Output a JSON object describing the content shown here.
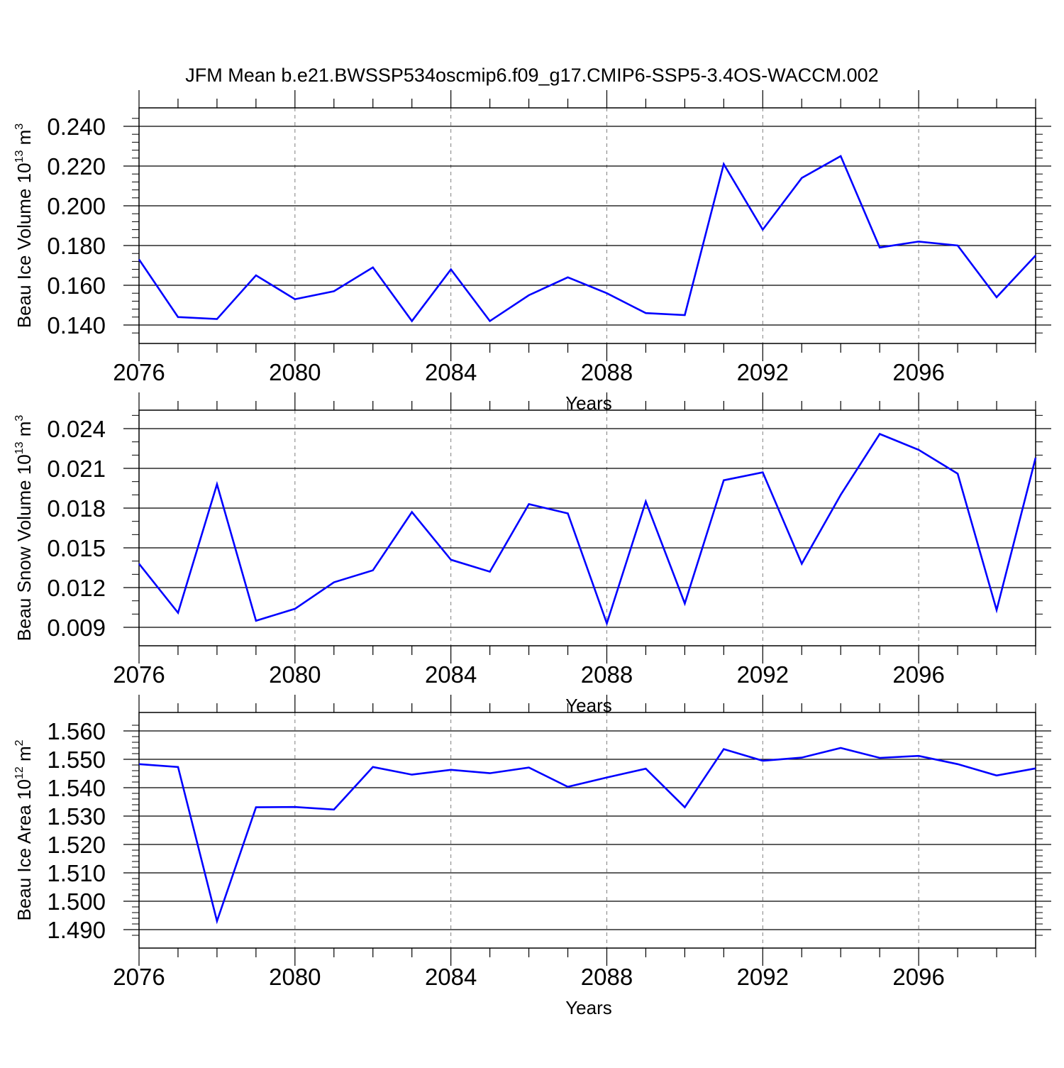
{
  "title": "JFM Mean b.e21.BWSSP534oscmip6.f09_g17.CMIP6-SSP5-3.4OS-WACCM.002",
  "colors": {
    "line": "#0000ff",
    "axis": "#000000",
    "grid": "#7f7f7f"
  },
  "chart_data": [
    {
      "type": "line",
      "xlabel": "Years",
      "ylabel": {
        "prefix": "Beau Ice Volume 10",
        "exp": "13",
        "unit": " m",
        "unit_exp": "3"
      },
      "xlim": [
        2076,
        2099
      ],
      "ylim": [
        0.136,
        0.246
      ],
      "xticks": [
        2076,
        2080,
        2084,
        2088,
        2092,
        2096
      ],
      "yticks": [
        0.14,
        0.16,
        0.18,
        0.2,
        0.22,
        0.24
      ],
      "ytick_labels": [
        "0.140",
        "0.160",
        "0.180",
        "0.200",
        "0.220",
        "0.240"
      ],
      "yminor_step": 0.004,
      "grid": "vertical dashed",
      "series": [
        {
          "x": [
            2076,
            2077,
            2078,
            2079,
            2080,
            2081,
            2082,
            2083,
            2084,
            2085,
            2086,
            2087,
            2088,
            2089,
            2090,
            2091,
            2092,
            2093,
            2094,
            2095,
            2096,
            2097,
            2098,
            2099
          ],
          "y": [
            0.173,
            0.144,
            0.143,
            0.165,
            0.153,
            0.157,
            0.169,
            0.142,
            0.168,
            0.142,
            0.155,
            0.164,
            0.156,
            0.146,
            0.145,
            0.221,
            0.188,
            0.214,
            0.225,
            0.179,
            0.182,
            0.18,
            0.154,
            0.175
          ]
        }
      ]
    },
    {
      "type": "line",
      "xlabel": "Years",
      "ylabel": {
        "prefix": "Beau Snow Volume 10",
        "exp": "13",
        "unit": " m",
        "unit_exp": "3"
      },
      "xlim": [
        2076,
        2099
      ],
      "ylim": [
        0.0082,
        0.0254
      ],
      "xticks": [
        2076,
        2080,
        2084,
        2088,
        2092,
        2096
      ],
      "yticks": [
        0.009,
        0.012,
        0.015,
        0.018,
        0.021,
        0.024
      ],
      "ytick_labels": [
        "0.009",
        "0.012",
        "0.015",
        "0.018",
        "0.021",
        "0.024"
      ],
      "yminor_step": 0.001,
      "grid": "vertical dashed",
      "series": [
        {
          "x": [
            2076,
            2077,
            2078,
            2079,
            2080,
            2081,
            2082,
            2083,
            2084,
            2085,
            2086,
            2087,
            2088,
            2089,
            2090,
            2091,
            2092,
            2093,
            2094,
            2095,
            2096,
            2097,
            2098,
            2099
          ],
          "y": [
            0.0138,
            0.0101,
            0.0198,
            0.0095,
            0.0104,
            0.0124,
            0.0133,
            0.0177,
            0.0141,
            0.0132,
            0.0183,
            0.0176,
            0.0093,
            0.0185,
            0.0108,
            0.0201,
            0.0207,
            0.0138,
            0.019,
            0.0236,
            0.0224,
            0.0206,
            0.0103,
            0.0218
          ]
        }
      ]
    },
    {
      "type": "line",
      "xlabel": "Years",
      "ylabel": {
        "prefix": "Beau Ice Area 10",
        "exp": "12",
        "unit": " m",
        "unit_exp": "2"
      },
      "xlim": [
        2076,
        2099
      ],
      "ylim": [
        1.4865,
        1.5635
      ],
      "xticks": [
        2076,
        2080,
        2084,
        2088,
        2092,
        2096
      ],
      "yticks": [
        1.49,
        1.5,
        1.51,
        1.52,
        1.53,
        1.54,
        1.55,
        1.56
      ],
      "ytick_labels": [
        "1.490",
        "1.500",
        "1.510",
        "1.520",
        "1.530",
        "1.540",
        "1.550",
        "1.560"
      ],
      "yminor_step": 0.002,
      "grid": "vertical dashed",
      "series": [
        {
          "x": [
            2076,
            2077,
            2078,
            2079,
            2080,
            2081,
            2082,
            2083,
            2084,
            2085,
            2086,
            2087,
            2088,
            2089,
            2090,
            2091,
            2092,
            2093,
            2094,
            2095,
            2096,
            2097,
            2098,
            2099
          ],
          "y": [
            1.5483,
            1.5473,
            1.493,
            1.5331,
            1.5332,
            1.5323,
            1.5473,
            1.5446,
            1.5463,
            1.5451,
            1.5471,
            1.5403,
            1.5436,
            1.5467,
            1.5331,
            1.5536,
            1.5495,
            1.5506,
            1.554,
            1.5505,
            1.5512,
            1.5483,
            1.5443,
            1.5468
          ]
        }
      ]
    }
  ]
}
